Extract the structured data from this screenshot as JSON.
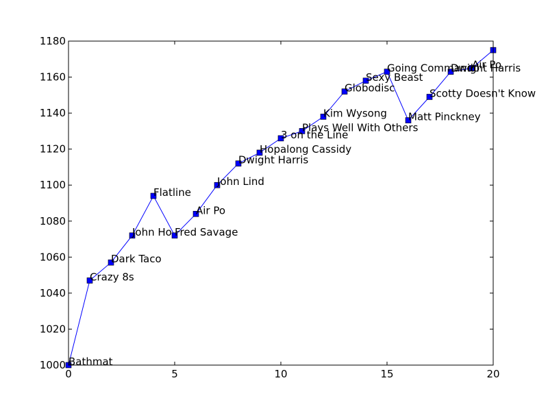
{
  "chart_data": {
    "type": "line",
    "title": "",
    "xlabel": "",
    "ylabel": "",
    "xlim": [
      0,
      20
    ],
    "ylim": [
      1000,
      1180
    ],
    "xticks": [
      0,
      5,
      10,
      15,
      20
    ],
    "yticks": [
      1000,
      1020,
      1040,
      1060,
      1080,
      1100,
      1120,
      1140,
      1160,
      1180
    ],
    "grid": false,
    "colors": {
      "line": "#0000ff",
      "marker": "#0000ff"
    },
    "marker": "square",
    "series": [
      {
        "points": [
          {
            "x": 0,
            "y": 1000,
            "label": "Bathmat"
          },
          {
            "x": 1,
            "y": 1047,
            "label": "Crazy 8s"
          },
          {
            "x": 2,
            "y": 1057,
            "label": "Dark Taco"
          },
          {
            "x": 3,
            "y": 1072,
            "label": "John Ho"
          },
          {
            "x": 4,
            "y": 1094,
            "label": "Flatline"
          },
          {
            "x": 5,
            "y": 1072,
            "label": "Fred Savage"
          },
          {
            "x": 6,
            "y": 1084,
            "label": "Air Po"
          },
          {
            "x": 7,
            "y": 1100,
            "label": "John Lind"
          },
          {
            "x": 8,
            "y": 1112,
            "label": "Dwight Harris"
          },
          {
            "x": 9,
            "y": 1118,
            "label": "Hopalong Cassidy"
          },
          {
            "x": 10,
            "y": 1126,
            "label": "3 on the Line"
          },
          {
            "x": 11,
            "y": 1130,
            "label": "Plays Well With Others"
          },
          {
            "x": 12,
            "y": 1138,
            "label": "Kim Wysong"
          },
          {
            "x": 13,
            "y": 1152,
            "label": "Globodisc"
          },
          {
            "x": 14,
            "y": 1158,
            "label": "Sexy Beast"
          },
          {
            "x": 15,
            "y": 1163,
            "label": "Going Commando"
          },
          {
            "x": 16,
            "y": 1136,
            "label": "Matt Pinckney"
          },
          {
            "x": 17,
            "y": 1149,
            "label": "Scotty Doesn't Know"
          },
          {
            "x": 18,
            "y": 1163,
            "label": "Dwight Harris"
          },
          {
            "x": 19,
            "y": 1165,
            "label": "Air Po"
          },
          {
            "x": 20,
            "y": 1175,
            "label": ""
          }
        ]
      }
    ]
  }
}
